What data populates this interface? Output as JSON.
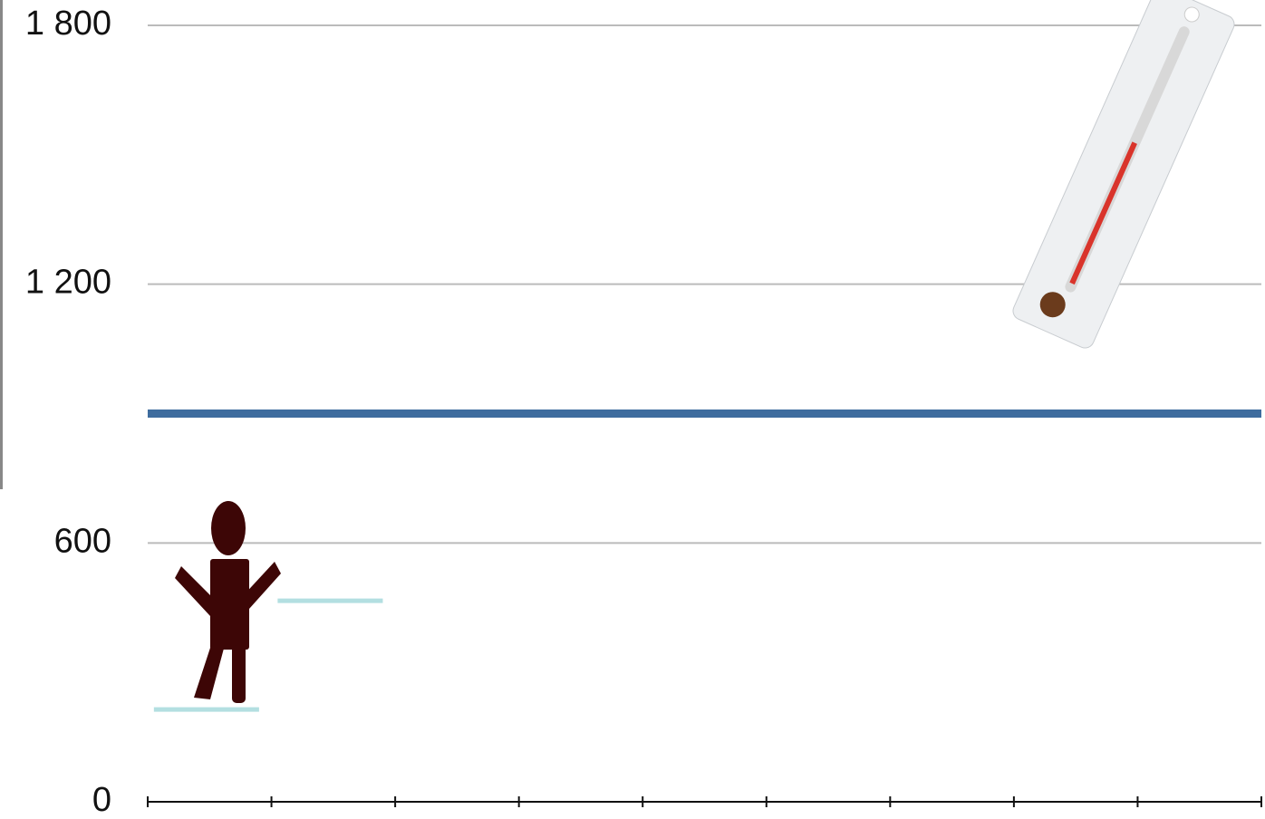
{
  "chart_data": {
    "type": "level",
    "categories": [
      null,
      null,
      null,
      null,
      null,
      null,
      null,
      null,
      null
    ],
    "series": [
      {
        "color": "#b3dfe1",
        "values": [
          214,
          466,
          null,
          null,
          null,
          null,
          null,
          null,
          null
        ]
      }
    ],
    "reference_line": {
      "value": 900,
      "color": "#3e6c9e"
    },
    "ylim": [
      0,
      1800
    ],
    "yticks": [
      0,
      600,
      {
        "value": 1200,
        "label": "1 200"
      },
      {
        "value": 1800,
        "label": "1 800"
      }
    ],
    "grid": true
  }
}
